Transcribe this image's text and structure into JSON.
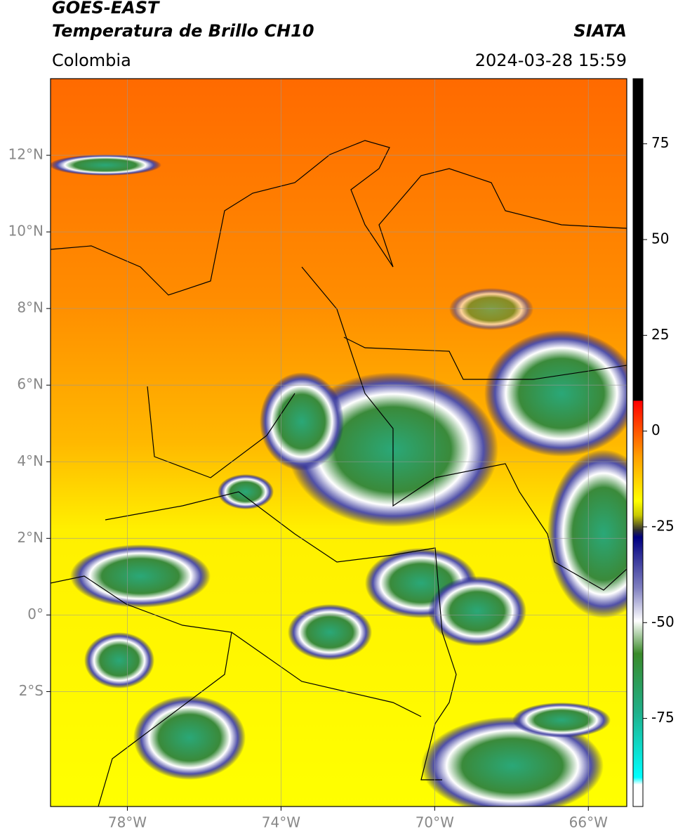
{
  "header": {
    "title": "GOES-EAST",
    "subtitle": "Temperatura de Brillo CH10",
    "source": "SIATA",
    "region": "Colombia",
    "timestamp": "2024-03-28 15:59"
  },
  "map": {
    "lon_range": [
      -80,
      -65
    ],
    "lat_range": [
      -5,
      14
    ],
    "grid": true,
    "lon_ticks": [
      {
        "value": -78,
        "label": "78°W"
      },
      {
        "value": -74,
        "label": "74°W"
      },
      {
        "value": -70,
        "label": "70°W"
      },
      {
        "value": -66,
        "label": "66°W"
      }
    ],
    "lat_ticks": [
      {
        "value": 12,
        "label": "12°N"
      },
      {
        "value": 10,
        "label": "10°N"
      },
      {
        "value": 8,
        "label": "8°N"
      },
      {
        "value": 6,
        "label": "6°N"
      },
      {
        "value": 4,
        "label": "4°N"
      },
      {
        "value": 2,
        "label": "2°N"
      },
      {
        "value": 0,
        "label": "0°"
      },
      {
        "value": -2,
        "label": "2°S"
      }
    ]
  },
  "colorbar": {
    "range": [
      -98,
      92
    ],
    "ticks": [
      75,
      50,
      25,
      0,
      -25,
      -50,
      -75
    ]
  }
}
